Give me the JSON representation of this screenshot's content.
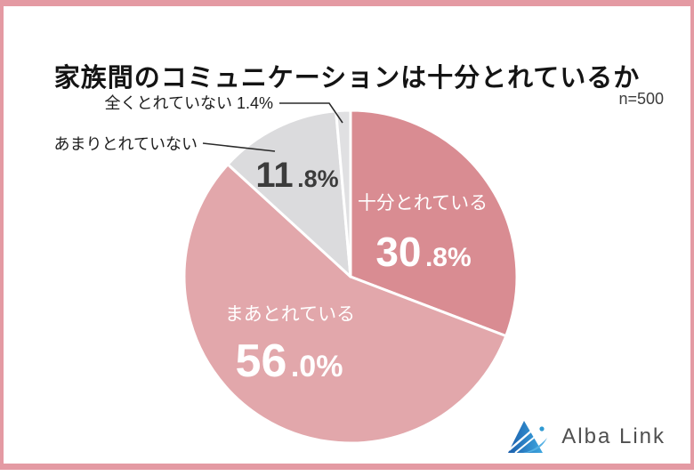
{
  "title": "家族間のコミュニケーションは十分とれているか",
  "sample_label": "n=500",
  "chart_data": {
    "type": "pie",
    "title": "家族間のコミュニケーションは十分とれているか",
    "sample_size_label": "n=500",
    "start_angle_deg": -90,
    "direction": "clockwise",
    "slice_gap_color": "#ffffff",
    "slices": [
      {
        "label": "十分とれている",
        "value": 30.8,
        "display_int": "30",
        "display_frac": ".8%",
        "color": "#d98c92",
        "label_placement": "inside",
        "text_color": "#ffffff"
      },
      {
        "label": "まあとれている",
        "value": 56.0,
        "display_int": "56",
        "display_frac": ".0%",
        "color": "#e2a7ab",
        "label_placement": "inside",
        "text_color": "#ffffff"
      },
      {
        "label": "あまりとれていない",
        "value": 11.8,
        "display_int": "11",
        "display_frac": ".8%",
        "color": "#dbdbdd",
        "label_placement": "name-outside-value-inside",
        "text_color": "#3c3c3c"
      },
      {
        "label": "全くとれていない",
        "value": 1.4,
        "outside_text": "全くとれていない 1.4%",
        "color": "#e0e0e2",
        "label_placement": "outside",
        "text_color": "#1d1d1d"
      }
    ]
  },
  "logo": {
    "text": "Alba Link",
    "icon": "alba-link-triangle-logo",
    "icon_colors": {
      "dark_blue": "#1a5dab",
      "light_blue": "#3ea7e0",
      "swoosh_blue": "#54b0e4"
    }
  },
  "frame": {
    "border_color": "#e49aa3",
    "background": "#ffffff"
  }
}
